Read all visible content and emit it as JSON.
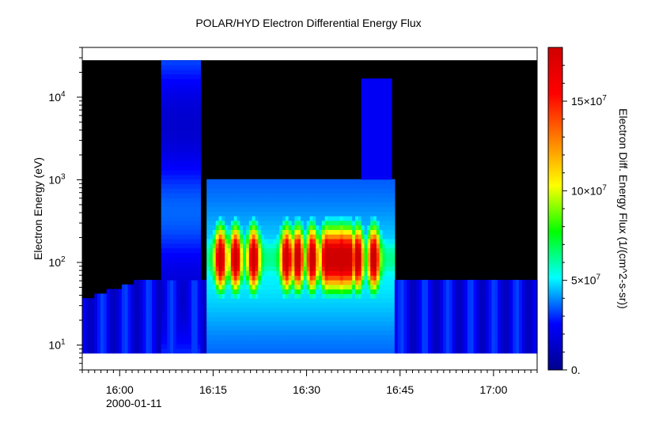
{
  "chart_data": {
    "type": "heatmap",
    "title": "POLAR/HYD  Electron Differential Energy Flux",
    "xlabel": "",
    "ylabel": "Electron Energy (eV)",
    "colorbar_label": "Electron Diff. Energy Flux (1/(cm^2-s-sr))",
    "x_ticks": [
      "16:00",
      "16:15",
      "16:30",
      "16:45",
      "17:00"
    ],
    "x_date_label": "2000-01-11",
    "x_range": [
      "15:54",
      "17:07"
    ],
    "y_scale": "log",
    "y_range": [
      5,
      40000
    ],
    "y_tick_labels": [
      {
        "base": "10",
        "exp": "1"
      },
      {
        "base": "10",
        "exp": "2"
      },
      {
        "base": "10",
        "exp": "3"
      },
      {
        "base": "10",
        "exp": "4"
      }
    ],
    "colorbar_range": [
      0,
      180000000
    ],
    "colorbar_ticks": [
      {
        "value": 0,
        "label": "0.",
        "exp": ""
      },
      {
        "value": 50000000,
        "label": "5×10",
        "exp": "7"
      },
      {
        "value": 100000000,
        "label": "10×10",
        "exp": "7"
      },
      {
        "value": 150000000,
        "label": "15×10",
        "exp": "7"
      }
    ],
    "colormap": [
      "#00008f",
      "#0000ff",
      "#00ffff",
      "#00ff00",
      "#ffff00",
      "#ff8000",
      "#ff0000",
      "#d00000"
    ],
    "background_color": "#000000",
    "grid": false
  }
}
